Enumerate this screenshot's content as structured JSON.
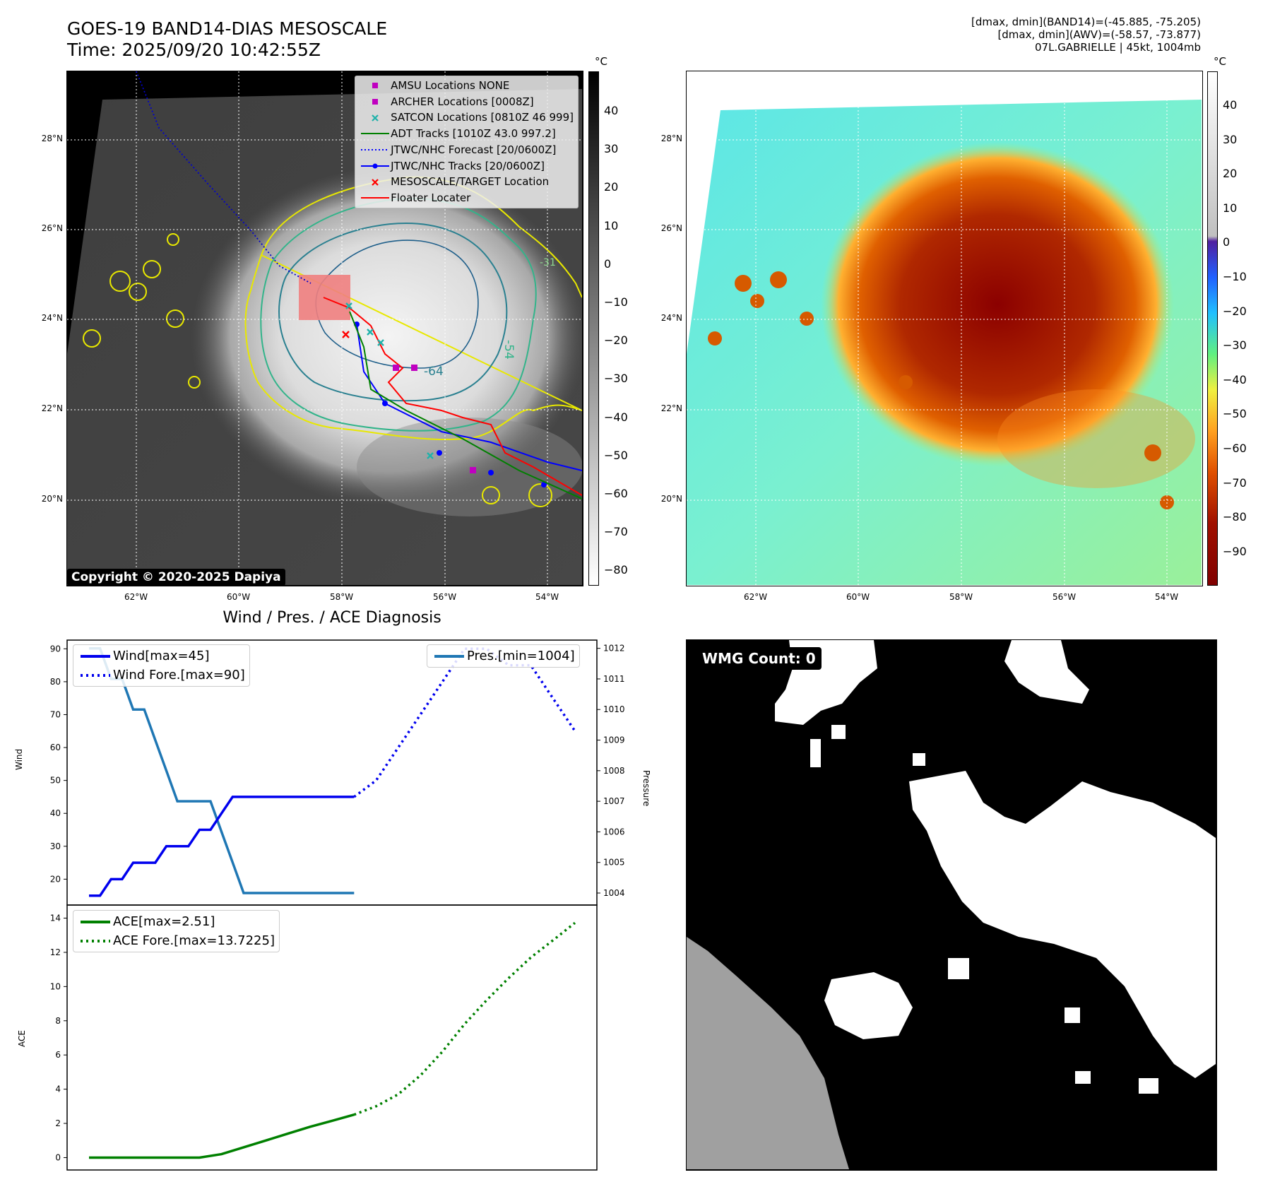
{
  "header": {
    "title_line1": "GOES-19 BAND14-DIAS MESOSCALE",
    "title_line2": "Time: 2025/09/20 10:42:55Z",
    "right_line1": "[dmax, dmin](BAND14)=(-45.885, -75.205)",
    "right_line2": "[dmax, dmin](AWV)=(-58.57, -73.877)",
    "right_line3": "07L.GABRIELLE | 45kt, 1004mb"
  },
  "map_axes": {
    "lat_labels": [
      "28°N",
      "26°N",
      "24°N",
      "22°N",
      "20°N"
    ],
    "lon_labels": [
      "62°W",
      "60°W",
      "58°W",
      "56°W",
      "54°W"
    ]
  },
  "ir_panel": {
    "colorbar_unit": "°C",
    "colorbar_ticks": [
      "40",
      "30",
      "20",
      "10",
      "0",
      "−10",
      "−20",
      "−30",
      "−40",
      "−50",
      "−60",
      "−70",
      "−80"
    ],
    "contour_labels": [
      "-31",
      "-54",
      "-64"
    ],
    "copyright": "Copyright © 2020-2025 Dapiya",
    "legend": [
      {
        "label": "AMSU Locations NONE",
        "color": "#c000c0",
        "symbol": "square"
      },
      {
        "label": "ARCHER Locations [0008Z]",
        "color": "#c000c0",
        "symbol": "square"
      },
      {
        "label": "SATCON Locations [0810Z 46 999]",
        "color": "#20b2aa",
        "symbol": "x"
      },
      {
        "label": "ADT Tracks [1010Z 43.0 997.2]",
        "color": "#008000",
        "symbol": "line"
      },
      {
        "label": "JTWC/NHC Forecast [20/0600Z]",
        "color": "#0000ff",
        "symbol": "dotted"
      },
      {
        "label": "JTWC/NHC Tracks [20/0600Z]",
        "color": "#0000ff",
        "symbol": "line-dot"
      },
      {
        "label": "MESOSCALE/TARGET Location",
        "color": "#ff0000",
        "symbol": "x"
      },
      {
        "label": "Floater Locater",
        "color": "#ff0000",
        "symbol": "line"
      }
    ]
  },
  "awv_panel": {
    "colorbar_unit": "°C",
    "colorbar_ticks": [
      "40",
      "30",
      "20",
      "10",
      "0",
      "−10",
      "−20",
      "−30",
      "−40",
      "−50",
      "−60",
      "−70",
      "−80",
      "−90"
    ]
  },
  "diag_panel": {
    "title": "Wind / Pres. / ACE Diagnosis"
  },
  "wmg_panel": {
    "label": "WMG Count: 0"
  },
  "chart_data": [
    {
      "type": "line",
      "title": "Wind / Pres. / ACE Diagnosis",
      "ylabel": "Wind",
      "ylim": [
        13,
        92
      ],
      "yticks": [
        20,
        30,
        40,
        50,
        60,
        70,
        80,
        90
      ],
      "y2label": "Pressure",
      "y2lim": [
        1003.7,
        1012.2
      ],
      "y2ticks": [
        1004,
        1005,
        1006,
        1007,
        1008,
        1009,
        1010,
        1011,
        1012
      ],
      "xlim": [
        0,
        44
      ],
      "series": [
        {
          "name": "Wind[max=45]",
          "axis": "left",
          "style": "solid",
          "color": "#0000ee",
          "x": [
            0,
            1,
            2,
            3,
            4,
            5,
            6,
            7,
            8,
            9,
            10,
            11,
            12,
            13,
            14,
            15,
            16,
            17,
            18,
            19,
            20,
            21,
            22,
            23,
            24
          ],
          "values": [
            15,
            15,
            20,
            20,
            25,
            25,
            25,
            30,
            30,
            30,
            35,
            35,
            40,
            45,
            45,
            45,
            45,
            45,
            45,
            45,
            45,
            45,
            45,
            45,
            45
          ]
        },
        {
          "name": "Wind Fore.[max=90]",
          "axis": "left",
          "style": "dotted",
          "color": "#0000ee",
          "x": [
            24,
            26,
            28,
            30,
            32,
            34,
            35,
            36,
            38,
            40,
            41,
            42,
            43,
            44
          ],
          "values": [
            45,
            50,
            60,
            70,
            80,
            90,
            90,
            90,
            85,
            85,
            80,
            75,
            70,
            65
          ]
        },
        {
          "name": "Pres.[min=1004]",
          "axis": "right",
          "style": "solid",
          "color": "#1f77b4",
          "x": [
            0,
            1,
            2,
            3,
            4,
            5,
            6,
            7,
            8,
            9,
            10,
            11,
            12,
            13,
            14,
            15,
            16,
            17,
            18,
            19,
            20,
            21,
            22,
            23,
            24
          ],
          "values": [
            1012,
            1012,
            1011,
            1011,
            1010,
            1010,
            1009,
            1008,
            1007,
            1007,
            1007,
            1007,
            1006,
            1005,
            1004,
            1004,
            1004,
            1004,
            1004,
            1004,
            1004,
            1004,
            1004,
            1004,
            1004
          ]
        }
      ]
    },
    {
      "type": "line",
      "ylabel": "ACE",
      "ylim": [
        -0.6,
        14.6
      ],
      "yticks": [
        0,
        2,
        4,
        6,
        8,
        10,
        12,
        14
      ],
      "xlim": [
        0,
        44
      ],
      "series": [
        {
          "name": "ACE[max=2.51]",
          "style": "solid",
          "color": "#008000",
          "x": [
            0,
            5,
            10,
            12,
            14,
            16,
            18,
            20,
            22,
            24
          ],
          "values": [
            0,
            0,
            0,
            0.2,
            0.6,
            1.0,
            1.4,
            1.8,
            2.15,
            2.51
          ]
        },
        {
          "name": "ACE Fore.[max=13.7225]",
          "style": "dotted",
          "color": "#008000",
          "x": [
            24,
            26,
            28,
            30,
            32,
            34,
            36,
            38,
            40,
            42,
            44
          ],
          "values": [
            2.51,
            3.0,
            3.7,
            4.8,
            6.2,
            7.8,
            9.2,
            10.5,
            11.7,
            12.7,
            13.7225
          ]
        }
      ]
    }
  ]
}
